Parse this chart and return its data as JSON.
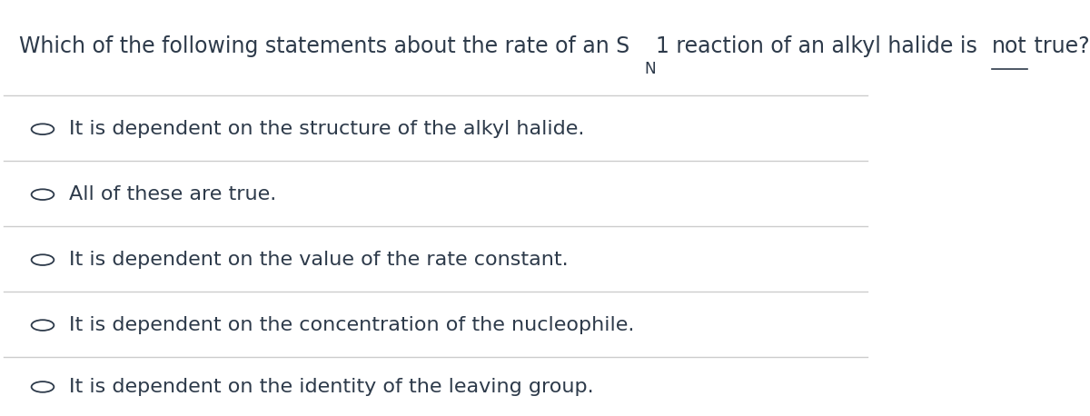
{
  "background_color": "#ffffff",
  "text_color": "#2d3a4a",
  "line_color": "#cccccc",
  "options": [
    "It is dependent on the structure of the alkyl halide.",
    "All of these are true.",
    "It is dependent on the value of the rate constant.",
    "It is dependent on the concentration of the nucleophile.",
    "It is dependent on the identity of the leaving group."
  ],
  "title_fontsize": 17,
  "option_fontsize": 16,
  "figsize": [
    12,
    4.58
  ],
  "dpi": 100
}
